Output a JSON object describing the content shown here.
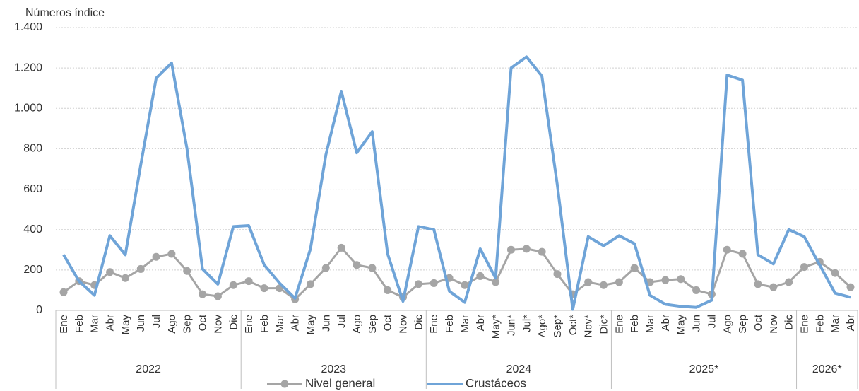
{
  "chart_data": {
    "type": "line",
    "y_axis_label": "Números índice",
    "groups": [
      {
        "name": "2022",
        "categories": [
          "Ene",
          "Feb",
          "Mar",
          "Abr",
          "May",
          "Jun",
          "Jul",
          "Ago",
          "Sep",
          "Oct",
          "Nov",
          "Dic"
        ]
      },
      {
        "name": "2023",
        "categories": [
          "Ene",
          "Feb",
          "Mar",
          "Abr",
          "May",
          "Jun",
          "Jul",
          "Ago",
          "Sep",
          "Oct",
          "Nov",
          "Dic"
        ]
      },
      {
        "name": "2024",
        "categories": [
          "Ene",
          "Feb",
          "Mar",
          "Abr",
          "May*",
          "Jun*",
          "Jul*",
          "Ago*",
          "Sep*",
          "Oct*",
          "Nov*",
          "Dic*"
        ]
      },
      {
        "name": "2025*",
        "categories": [
          "Ene",
          "Feb",
          "Mar",
          "Abr",
          "May",
          "Jun",
          "Jul",
          "Ago",
          "Sep",
          "Oct",
          "Nov",
          "Dic"
        ]
      },
      {
        "name": "2026*",
        "categories": [
          "Ene",
          "Feb",
          "Mar",
          "Abr"
        ]
      }
    ],
    "series": [
      {
        "name": "Nivel general",
        "color": "#a5a5a5",
        "markers": true,
        "values": [
          90,
          145,
          125,
          190,
          160,
          205,
          265,
          280,
          195,
          80,
          70,
          125,
          145,
          110,
          110,
          55,
          130,
          210,
          310,
          225,
          210,
          100,
          65,
          130,
          135,
          160,
          125,
          170,
          140,
          300,
          305,
          290,
          180,
          80,
          140,
          125,
          140,
          210,
          140,
          150,
          155,
          100,
          80,
          300,
          280,
          130,
          115,
          140,
          215,
          240,
          185,
          115
        ]
      },
      {
        "name": "Crustáceos",
        "color": "#6fa4d8",
        "markers": false,
        "values": [
          275,
          145,
          75,
          370,
          275,
          720,
          1150,
          1225,
          800,
          205,
          130,
          415,
          420,
          225,
          135,
          60,
          305,
          770,
          1085,
          780,
          885,
          280,
          45,
          415,
          400,
          95,
          40,
          305,
          160,
          1200,
          1255,
          1160,
          620,
          5,
          365,
          320,
          370,
          330,
          75,
          30,
          20,
          15,
          50,
          1165,
          1140,
          275,
          230,
          400,
          365,
          225,
          85,
          65
        ]
      }
    ],
    "ylim": [
      0,
      1400
    ],
    "yticks": [
      0,
      200,
      400,
      600,
      800,
      {
        "value": 1000,
        "label": "1.000"
      },
      {
        "value": 1200,
        "label": "1.200"
      },
      {
        "value": 1400,
        "label": "1.400"
      }
    ],
    "grid": true
  }
}
